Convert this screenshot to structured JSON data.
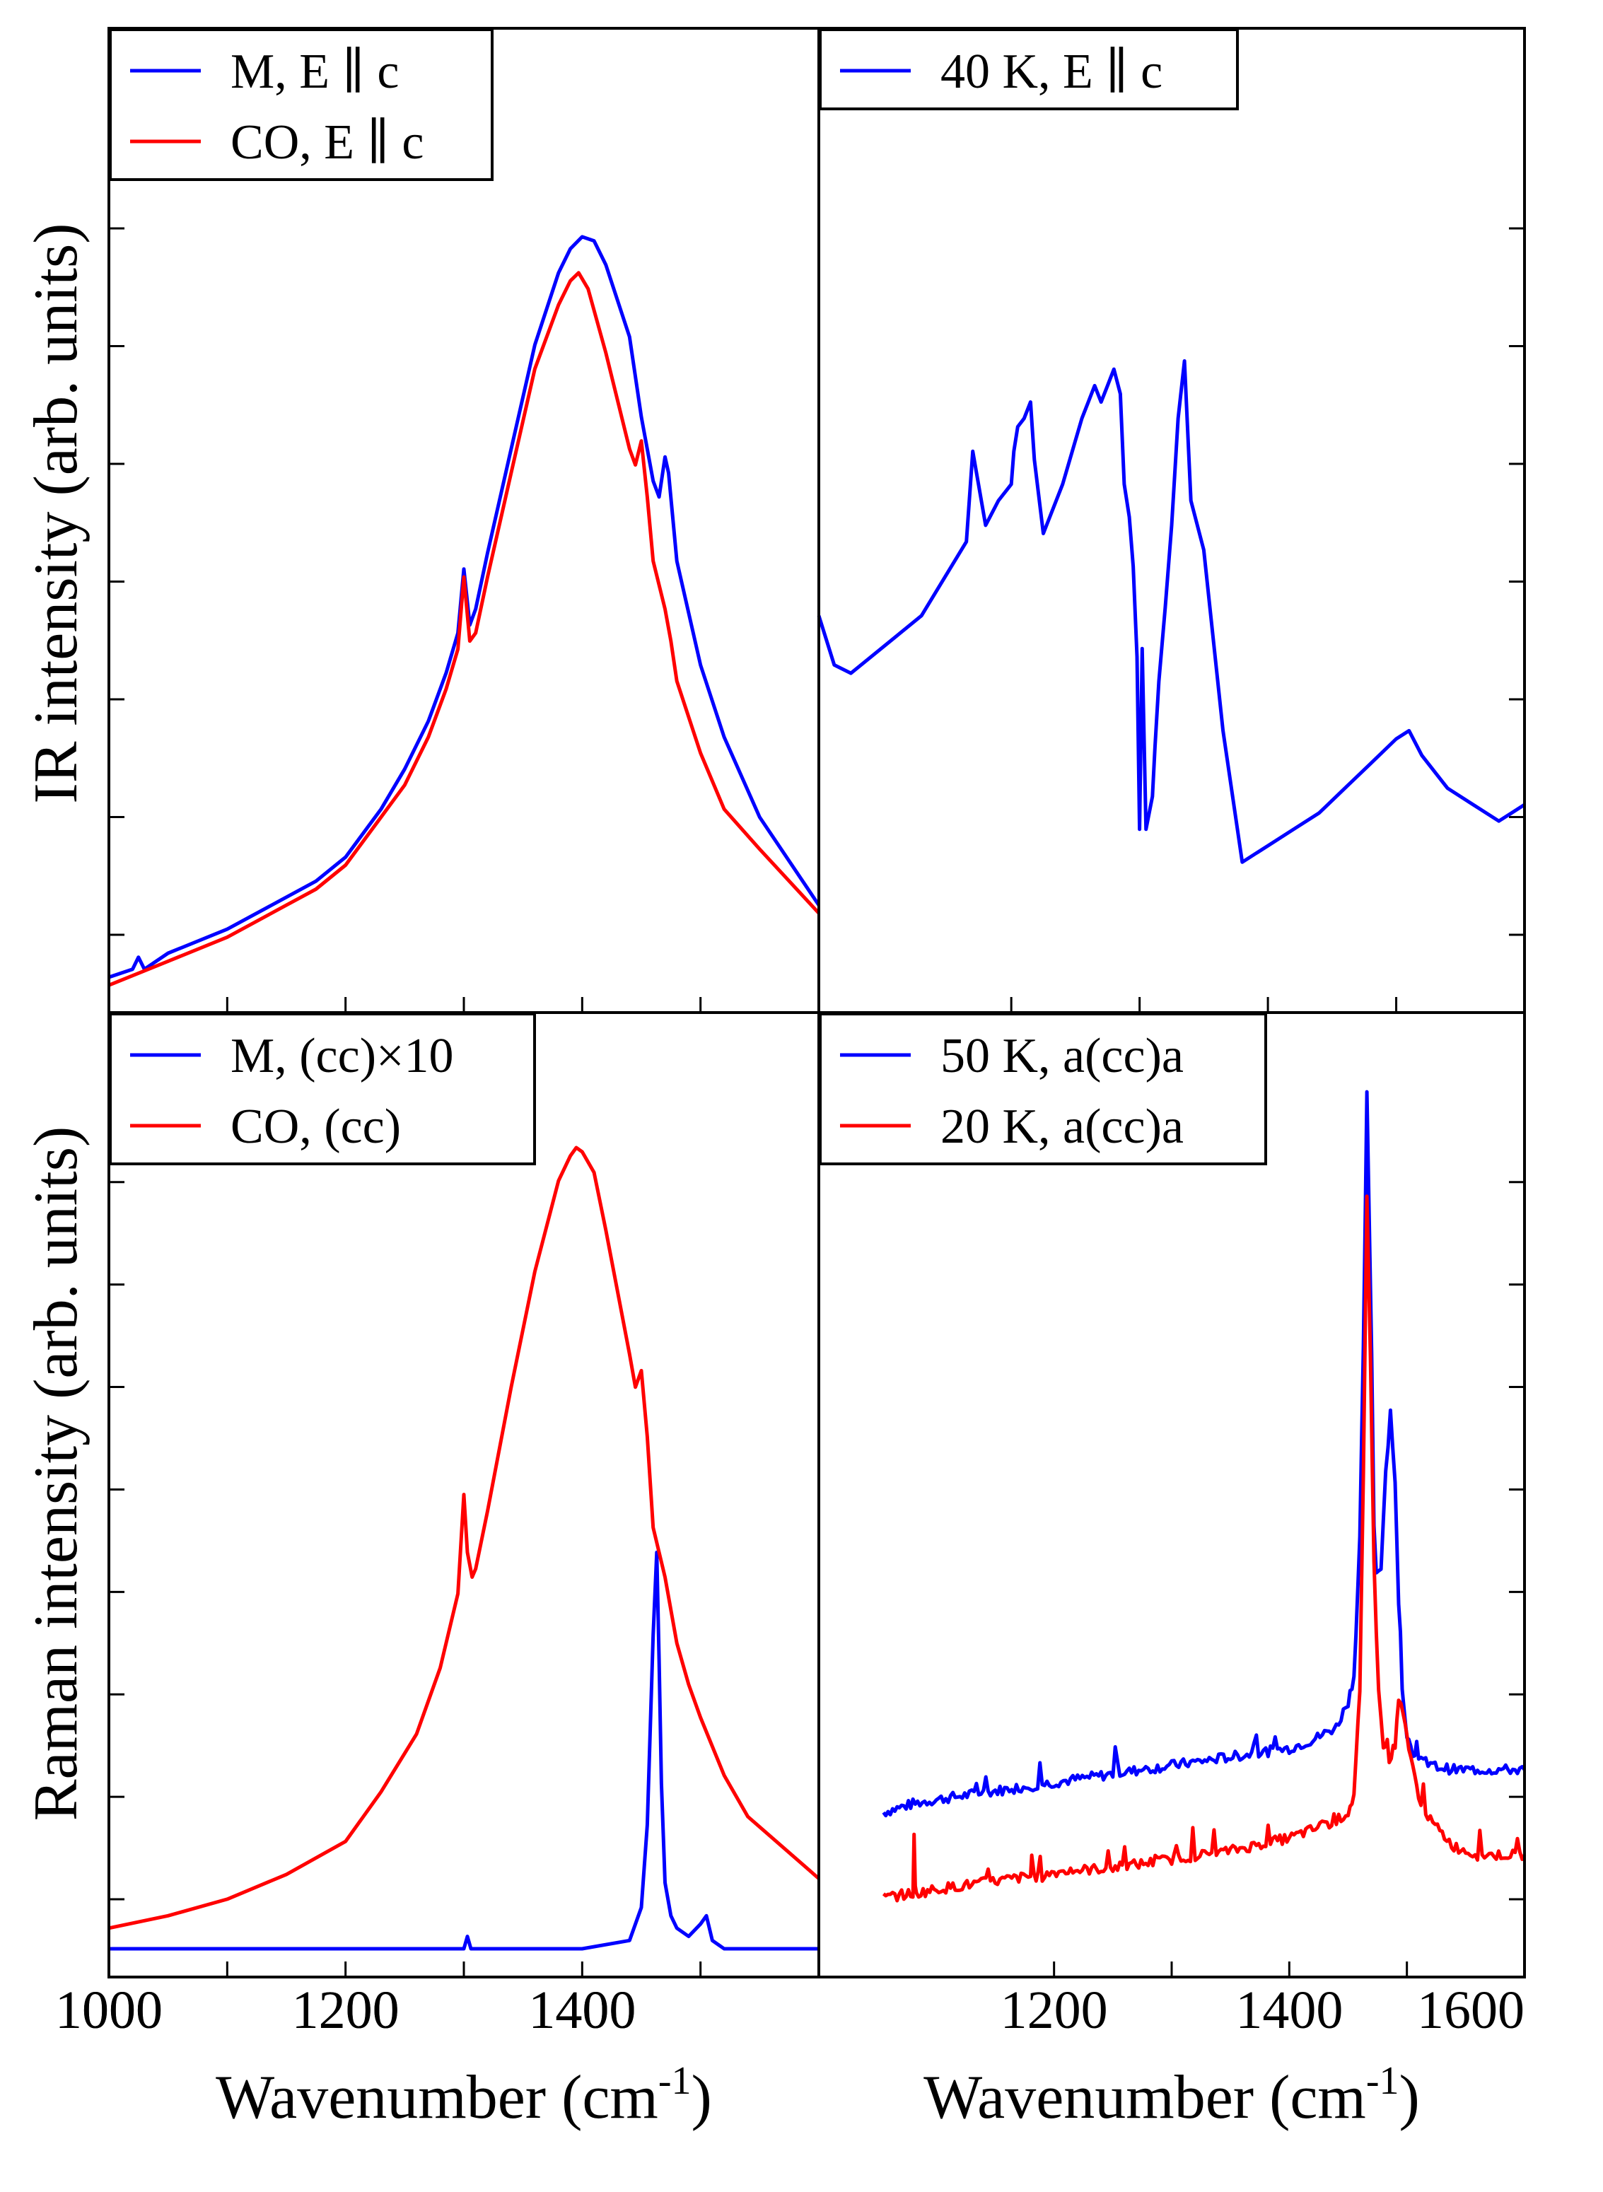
{
  "figure": {
    "ylabel_top": "IR intensity (arb. units)",
    "ylabel_bottom": "Raman intensity (arb. units)",
    "xlabel_text": "Wavenumber (cm",
    "xlabel_sup": "-1",
    "xlabel_close": ")"
  },
  "chart_data": [
    {
      "id": "ir_left",
      "type": "line",
      "xlim": [
        1000,
        1600
      ],
      "ylim": [
        0,
        10
      ],
      "xticks": [
        1000,
        1200,
        1400
      ],
      "yticks": [
        1,
        2,
        3,
        4,
        5,
        6,
        7
      ],
      "series": [
        {
          "name": "M, E || c",
          "label": "M, E ∥ c",
          "color": "#0000ff",
          "x": [
            1000,
            1020,
            1025,
            1030,
            1050,
            1100,
            1150,
            1175,
            1200,
            1230,
            1250,
            1270,
            1285,
            1295,
            1300,
            1305,
            1310,
            1320,
            1340,
            1360,
            1380,
            1390,
            1400,
            1410,
            1420,
            1440,
            1450,
            1460,
            1465,
            1470,
            1473,
            1480,
            1500,
            1520,
            1550,
            1600
          ],
          "y": [
            0.0,
            0.1,
            0.25,
            0.1,
            0.3,
            0.6,
            1.0,
            1.2,
            1.5,
            2.1,
            2.6,
            3.2,
            3.8,
            4.3,
            5.1,
            4.4,
            4.6,
            5.3,
            6.6,
            7.9,
            8.8,
            9.1,
            9.25,
            9.2,
            8.9,
            8.0,
            7.0,
            6.2,
            6.0,
            6.5,
            6.3,
            5.2,
            3.9,
            3.0,
            2.0,
            0.9
          ]
        },
        {
          "name": "CO, E || c",
          "label": "CO, E ∥ c",
          "color": "#ff0000",
          "x": [
            1000,
            1050,
            1100,
            1150,
            1175,
            1200,
            1230,
            1250,
            1270,
            1285,
            1295,
            1300,
            1305,
            1310,
            1320,
            1340,
            1360,
            1380,
            1390,
            1397,
            1405,
            1420,
            1440,
            1445,
            1450,
            1455,
            1460,
            1470,
            1475,
            1480,
            1500,
            1520,
            1550,
            1600
          ],
          "y": [
            -0.1,
            0.2,
            0.5,
            0.9,
            1.1,
            1.4,
            2.0,
            2.4,
            3.0,
            3.6,
            4.1,
            5.0,
            4.2,
            4.3,
            5.0,
            6.3,
            7.6,
            8.4,
            8.7,
            8.8,
            8.6,
            7.8,
            6.6,
            6.4,
            6.7,
            6.0,
            5.2,
            4.6,
            4.2,
            3.7,
            2.8,
            2.1,
            1.6,
            0.8
          ]
        }
      ],
      "legend": {
        "position": "top-left"
      }
    },
    {
      "id": "ir_right",
      "type": "line",
      "xlim": [
        1050,
        1600
      ],
      "ylim": [
        0,
        10
      ],
      "yticks": [
        1,
        2,
        3,
        4,
        5,
        6,
        7
      ],
      "series": [
        {
          "name": "40 K, E || c",
          "label": "40 K, E ∥ c",
          "color": "#0000ff",
          "x": [
            1050,
            1062,
            1075,
            1130,
            1165,
            1170,
            1180,
            1190,
            1200,
            1202,
            1205,
            1210,
            1215,
            1218,
            1225,
            1240,
            1255,
            1260,
            1265,
            1270,
            1275,
            1280,
            1285,
            1288,
            1292,
            1295,
            1298,
            1300,
            1302,
            1305,
            1310,
            1312,
            1315,
            1320,
            1325,
            1330,
            1335,
            1340,
            1345,
            1350,
            1365,
            1380,
            1390,
            1400,
            1420,
            1440,
            1460,
            1480,
            1500,
            1510,
            1520,
            1540,
            1560,
            1580,
            1590,
            1600
          ],
          "y": [
            4.4,
            3.8,
            3.7,
            4.4,
            5.3,
            6.4,
            5.5,
            5.8,
            6.0,
            6.4,
            6.7,
            6.8,
            7.0,
            6.3,
            5.4,
            6.0,
            6.8,
            7.0,
            7.2,
            7.0,
            7.2,
            7.4,
            7.1,
            6.0,
            5.6,
            5.0,
            3.9,
            1.8,
            4.0,
            1.8,
            2.2,
            2.8,
            3.6,
            4.5,
            5.5,
            6.8,
            7.5,
            5.8,
            5.5,
            5.2,
            3.0,
            1.4,
            1.5,
            1.6,
            1.8,
            2.0,
            2.3,
            2.6,
            2.9,
            3.0,
            2.7,
            2.3,
            2.1,
            1.9,
            2.0,
            2.1
          ]
        }
      ],
      "legend": {
        "position": "top-left"
      }
    },
    {
      "id": "raman_left",
      "type": "line",
      "xlim": [
        1000,
        1600
      ],
      "ylim": [
        0,
        10
      ],
      "xticks": [
        1000,
        1200,
        1400
      ],
      "yticks": [
        1,
        2,
        3,
        4,
        5,
        6,
        7,
        8
      ],
      "series": [
        {
          "name": "M, (cc)×10",
          "label": "M, (cc)×10",
          "color": "#0000ff",
          "x": [
            1000,
            1200,
            1300,
            1303,
            1306,
            1310,
            1400,
            1440,
            1450,
            1455,
            1460,
            1463,
            1465,
            1467,
            1470,
            1475,
            1480,
            1490,
            1500,
            1505,
            1510,
            1520,
            1600
          ],
          "y": [
            0.0,
            0.0,
            0.0,
            0.15,
            0.0,
            0.0,
            0.0,
            0.1,
            0.5,
            1.5,
            3.8,
            4.8,
            3.5,
            2.0,
            0.8,
            0.4,
            0.25,
            0.15,
            0.3,
            0.4,
            0.1,
            0.0,
            0.0
          ]
        },
        {
          "name": "CO, (cc)",
          "label": "CO, (cc)",
          "color": "#ff0000",
          "x": [
            1000,
            1050,
            1100,
            1150,
            1200,
            1230,
            1260,
            1280,
            1295,
            1300,
            1303,
            1307,
            1310,
            1320,
            1340,
            1360,
            1380,
            1390,
            1395,
            1400,
            1410,
            1420,
            1440,
            1445,
            1450,
            1455,
            1460,
            1470,
            1480,
            1490,
            1500,
            1520,
            1540,
            1600
          ],
          "y": [
            0.25,
            0.4,
            0.6,
            0.9,
            1.3,
            1.9,
            2.6,
            3.4,
            4.3,
            5.5,
            4.8,
            4.5,
            4.6,
            5.3,
            6.8,
            8.2,
            9.3,
            9.6,
            9.7,
            9.65,
            9.4,
            8.7,
            7.2,
            6.8,
            7.0,
            6.2,
            5.1,
            4.5,
            3.7,
            3.2,
            2.8,
            2.1,
            1.6,
            0.85
          ]
        }
      ],
      "legend": {
        "position": "top-left"
      }
    },
    {
      "id": "raman_right",
      "type": "line",
      "xlim": [
        1000,
        1600
      ],
      "ylim": [
        0,
        10
      ],
      "xticks": [
        1200,
        1400,
        1600
      ],
      "yticks": [
        1,
        2,
        3,
        4,
        5,
        6,
        7,
        8
      ],
      "series": [
        {
          "name": "50 K, a(cc)a",
          "label": "50 K, a(cc)a",
          "color": "#0000ff",
          "x": [
            1055,
            1080,
            1100,
            1150,
            1200,
            1250,
            1300,
            1350,
            1400,
            1420,
            1440,
            1450,
            1455,
            1460,
            1463,
            1466,
            1468,
            1470,
            1472,
            1474,
            1478,
            1482,
            1486,
            1490,
            1493,
            1496,
            1500,
            1505,
            1510,
            1520,
            1540,
            1560,
            1600
          ],
          "y": [
            1.6,
            1.7,
            1.75,
            1.85,
            1.95,
            2.05,
            2.15,
            2.25,
            2.35,
            2.45,
            2.6,
            2.9,
            3.2,
            4.8,
            7.0,
            10.0,
            8.5,
            7.0,
            5.0,
            4.4,
            4.5,
            5.6,
            6.3,
            5.5,
            4.0,
            3.0,
            2.5,
            2.3,
            2.2,
            2.15,
            2.1,
            2.1,
            2.1
          ]
        },
        {
          "name": "20 K, a(cc)a",
          "label": "20 K, a(cc)a",
          "color": "#ff0000",
          "x": [
            1055,
            1080,
            1081,
            1082,
            1083,
            1100,
            1180,
            1181,
            1183,
            1190,
            1200,
            1250,
            1300,
            1350,
            1400,
            1420,
            1440,
            1450,
            1455,
            1460,
            1463,
            1466,
            1469,
            1472,
            1476,
            1480,
            1485,
            1490,
            1493,
            1497,
            1500,
            1505,
            1510,
            1520,
            1540,
            1560,
            1600
          ],
          "y": [
            0.6,
            0.65,
            1.3,
            0.7,
            0.65,
            0.7,
            0.85,
            1.1,
            0.85,
            0.85,
            0.9,
            0.95,
            1.05,
            1.15,
            1.3,
            1.4,
            1.5,
            1.6,
            1.8,
            3.0,
            5.5,
            8.8,
            7.0,
            4.5,
            3.0,
            2.4,
            2.2,
            2.4,
            2.9,
            2.8,
            2.5,
            2.1,
            1.8,
            1.5,
            1.2,
            1.1,
            1.1
          ]
        }
      ],
      "legend": {
        "position": "top-left"
      }
    }
  ]
}
